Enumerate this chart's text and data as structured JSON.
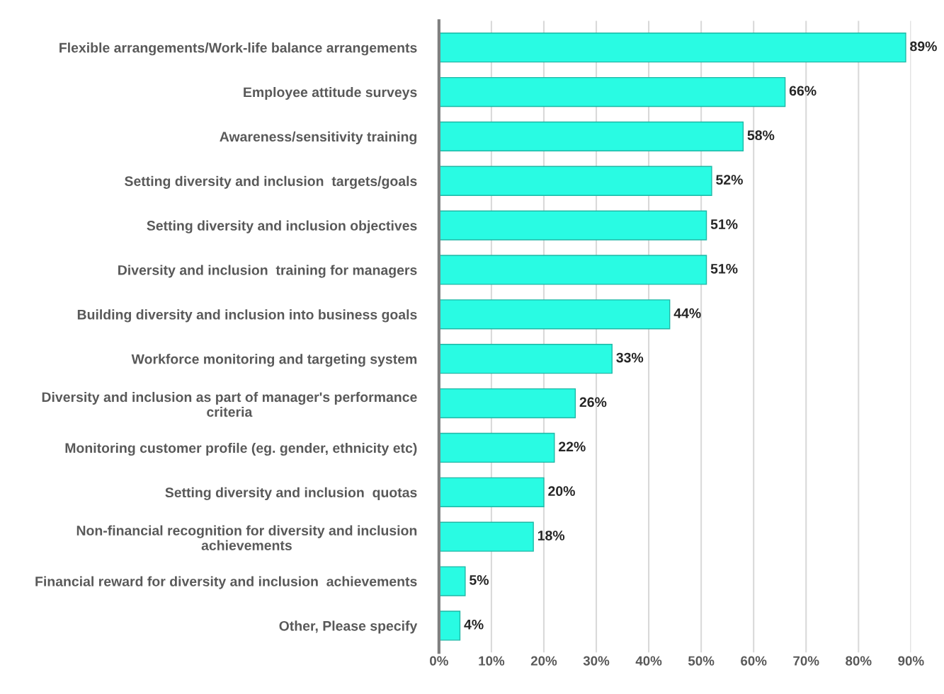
{
  "chart_data": {
    "type": "bar",
    "orientation": "horizontal",
    "categories": [
      "Flexible arrangements/Work-life balance arrangements",
      "Employee attitude surveys",
      "Awareness/sensitivity training",
      "Setting diversity and inclusion  targets/goals",
      "Setting diversity and inclusion objectives",
      "Diversity and inclusion  training for managers",
      "Building diversity and inclusion into business goals",
      "Workforce monitoring and targeting system",
      "Diversity and inclusion as part of manager's performance\ncriteria",
      "Monitoring customer profile (eg. gender, ethnicity etc)",
      "Setting diversity and inclusion  quotas",
      "Non-financial recognition for diversity and inclusion\nachievements",
      "Financial reward for diversity and inclusion  achievements",
      "Other, Please specify"
    ],
    "values": [
      89,
      66,
      58,
      52,
      51,
      51,
      44,
      33,
      26,
      22,
      20,
      18,
      5,
      4
    ],
    "value_labels": [
      "89%",
      "66%",
      "58%",
      "52%",
      "51%",
      "51%",
      "44%",
      "33%",
      "26%",
      "22%",
      "20%",
      "18%",
      "5%",
      "4%"
    ],
    "color": "#29fbe3",
    "xlim": [
      0,
      90
    ],
    "xticks": [
      {
        "value": 0,
        "label": "0%"
      },
      {
        "value": 10,
        "label": "10%"
      },
      {
        "value": 20,
        "label": "20%"
      },
      {
        "value": 30,
        "label": "30%"
      },
      {
        "value": 40,
        "label": "40%"
      },
      {
        "value": 50,
        "label": "50%"
      },
      {
        "value": 60,
        "label": "60%"
      },
      {
        "value": 70,
        "label": "70%"
      },
      {
        "value": 80,
        "label": "80%"
      },
      {
        "value": 90,
        "label": "90%"
      }
    ],
    "grid": "x",
    "legend": false
  }
}
